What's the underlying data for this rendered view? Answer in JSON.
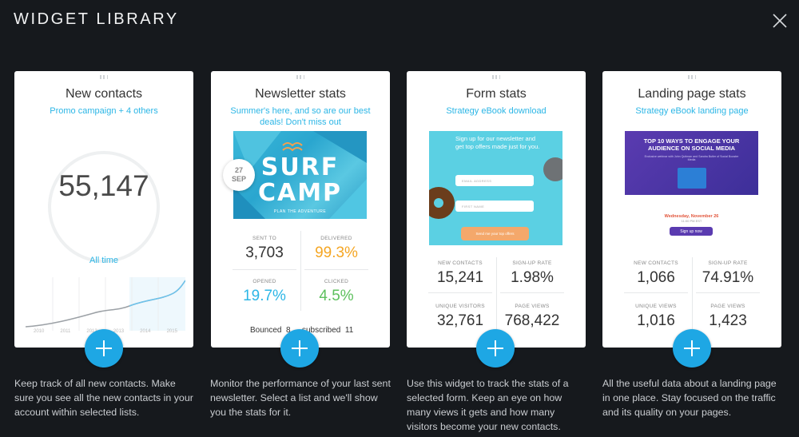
{
  "header": {
    "title": "WIDGET LIBRARY"
  },
  "cards": [
    {
      "title": "New contacts",
      "subtitle": "Promo campaign + 4 others",
      "big_value": "55,147",
      "period": "All time",
      "years": [
        "2010",
        "2011",
        "2012",
        "2013",
        "2014",
        "2015"
      ],
      "description": "Keep track of all new contacts. Make sure you see all the new contacts in your account within selected lists."
    },
    {
      "title": "Newsletter stats",
      "subtitle": "Summer's here, and so are our best deals! Don't miss out",
      "image": {
        "headline_1": "SURF",
        "headline_2": "CAMP",
        "tagline": "PLAN THE ADVENTURE",
        "day": "27",
        "month": "SEP"
      },
      "stats": [
        {
          "label": "SENT TO",
          "value": "3,703",
          "color": "#333333"
        },
        {
          "label": "DELIVERED",
          "value": "99.3%",
          "color": "#f5a623"
        },
        {
          "label": "OPENED",
          "value": "19.7%",
          "color": "#2cb6e6"
        },
        {
          "label": "CLICKED",
          "value": "4.5%",
          "color": "#5dc05d"
        }
      ],
      "bounced_label": "Bounced",
      "bounced_value": "8",
      "unsub_label": "subscribed",
      "unsub_value": "11",
      "description": "Monitor the performance of your last sent newsletter. Select a list and we'll show you the stats for it."
    },
    {
      "title": "Form stats",
      "subtitle": "Strategy eBook download",
      "image": {
        "headline": "Sign up for our newsletter and get top offers made just for you.",
        "field_1": "EMAIL ADDRESS",
        "field_2": "FIRST NAME",
        "button": "Send me your top offers"
      },
      "stats": [
        {
          "label": "NEW CONTACTS",
          "value": "15,241"
        },
        {
          "label": "SIGN-UP RATE",
          "value": "1.98%"
        },
        {
          "label": "UNIQUE VISITORS",
          "value": "32,761"
        },
        {
          "label": "PAGE VIEWS",
          "value": "768,422"
        }
      ],
      "description": "Use this widget to track the stats of a selected form. Keep an eye on how many views it gets and how many visitors become your new contacts."
    },
    {
      "title": "Landing page stats",
      "subtitle": "Strategy eBook landing page",
      "image": {
        "headline": "TOP 10 WAYS TO ENGAGE YOUR AUDIENCE ON SOCIAL MEDIA",
        "small": "Exclusive webinar with John Quitman and Sandra Butler of Social Booster Media",
        "date": "Wednesday, November 26",
        "time": "11:00 PM EST",
        "button": "Sign up now"
      },
      "stats": [
        {
          "label": "NEW CONTACTS",
          "value": "1,066"
        },
        {
          "label": "SIGN-UP RATE",
          "value": "74.91%"
        },
        {
          "label": "UNIQUE VIEWS",
          "value": "1,016"
        },
        {
          "label": "PAGE VIEWS",
          "value": "1,423"
        }
      ],
      "description": "All the useful data about a landing page in one place. Stay focused on the traffic and its quality on your pages."
    }
  ],
  "colors": {
    "accent": "#1ea7e4",
    "background": "#16191d"
  },
  "icons": {
    "close": "close-icon",
    "add": "plus-icon",
    "drag": "drag-handle-icon"
  }
}
